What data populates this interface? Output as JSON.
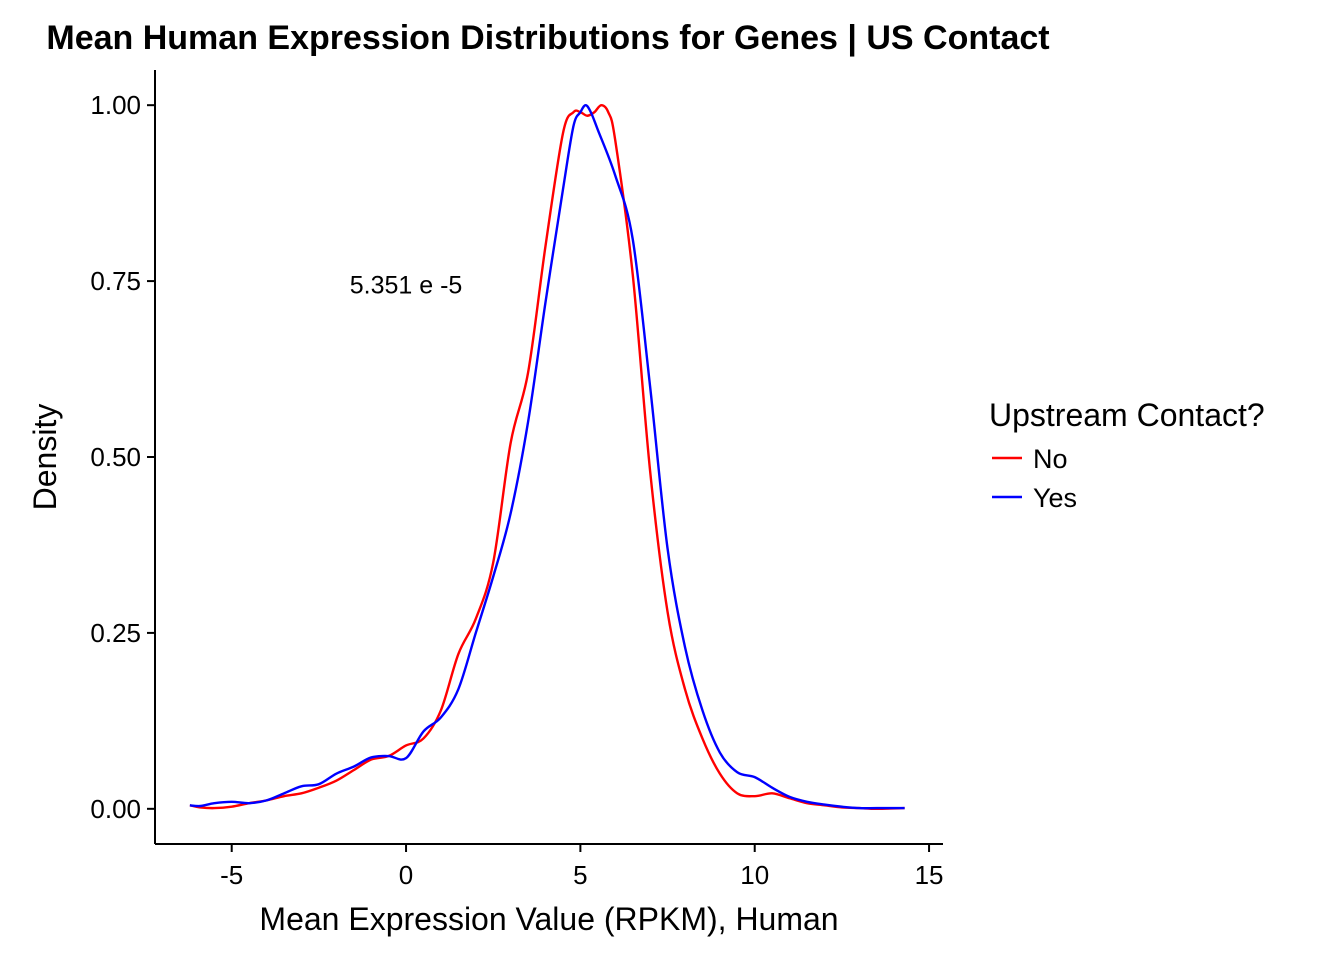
{
  "chart_data": {
    "type": "line",
    "title": "Mean Human Expression Distributions for Genes | US Contact",
    "xlabel": "Mean Expression Value (RPKM), Human",
    "ylabel": "Density",
    "xlim": [
      -7.2,
      15.4
    ],
    "ylim": [
      -0.05,
      1.05
    ],
    "x_ticks": [
      -5,
      0,
      5,
      10,
      15
    ],
    "x_tick_labels": [
      "-5",
      "0",
      "5",
      "10",
      "15"
    ],
    "y_ticks": [
      0,
      0.25,
      0.5,
      0.75,
      1.0
    ],
    "y_tick_labels": [
      "0.00",
      "0.25",
      "0.50",
      "0.75",
      "1.00"
    ],
    "grid": false,
    "legend": {
      "title": "Upstream Contact?",
      "placement": "right"
    },
    "annotation": {
      "text": "5.351 e -5",
      "x": 0,
      "y": 0.745
    },
    "series": [
      {
        "name": "No",
        "color": "#ff0000",
        "x": [
          -6.2,
          -5.9,
          -5.5,
          -5.0,
          -4.5,
          -4.0,
          -3.5,
          -3.0,
          -2.5,
          -2.0,
          -1.5,
          -1.0,
          -0.5,
          0.0,
          0.5,
          1.0,
          1.5,
          2.0,
          2.5,
          3.0,
          3.5,
          4.0,
          4.5,
          4.8,
          5.0,
          5.2,
          5.4,
          5.6,
          5.8,
          6.0,
          6.5,
          7.0,
          7.5,
          8.0,
          8.5,
          9.0,
          9.5,
          10.0,
          10.5,
          11.0,
          11.5,
          12.0,
          12.5,
          13.0,
          13.5,
          14.3
        ],
        "y": [
          0.005,
          0.002,
          0.001,
          0.003,
          0.008,
          0.012,
          0.018,
          0.022,
          0.03,
          0.04,
          0.055,
          0.07,
          0.075,
          0.09,
          0.1,
          0.14,
          0.22,
          0.27,
          0.35,
          0.52,
          0.62,
          0.8,
          0.96,
          0.99,
          0.99,
          0.985,
          0.99,
          1.0,
          0.99,
          0.95,
          0.76,
          0.48,
          0.28,
          0.17,
          0.1,
          0.05,
          0.022,
          0.018,
          0.022,
          0.015,
          0.008,
          0.005,
          0.002,
          0.001,
          0.0,
          0.001
        ]
      },
      {
        "name": "Yes",
        "color": "#0000ff",
        "x": [
          -6.2,
          -5.9,
          -5.5,
          -5.0,
          -4.5,
          -4.0,
          -3.5,
          -3.0,
          -2.5,
          -2.0,
          -1.5,
          -1.0,
          -0.5,
          0.0,
          0.5,
          1.0,
          1.5,
          2.0,
          2.5,
          3.0,
          3.5,
          4.0,
          4.5,
          4.8,
          5.0,
          5.15,
          5.3,
          5.5,
          6.0,
          6.5,
          7.0,
          7.5,
          8.0,
          8.5,
          9.0,
          9.5,
          10.0,
          10.5,
          11.0,
          11.5,
          12.0,
          12.5,
          13.0,
          13.5,
          14.3
        ],
        "y": [
          0.005,
          0.004,
          0.008,
          0.01,
          0.008,
          0.012,
          0.022,
          0.032,
          0.035,
          0.05,
          0.06,
          0.073,
          0.075,
          0.072,
          0.11,
          0.13,
          0.17,
          0.25,
          0.33,
          0.42,
          0.55,
          0.72,
          0.88,
          0.97,
          0.99,
          1.0,
          0.99,
          0.965,
          0.9,
          0.81,
          0.6,
          0.37,
          0.23,
          0.14,
          0.08,
          0.052,
          0.045,
          0.03,
          0.017,
          0.01,
          0.006,
          0.003,
          0.001,
          0.001,
          0.001
        ]
      }
    ]
  }
}
